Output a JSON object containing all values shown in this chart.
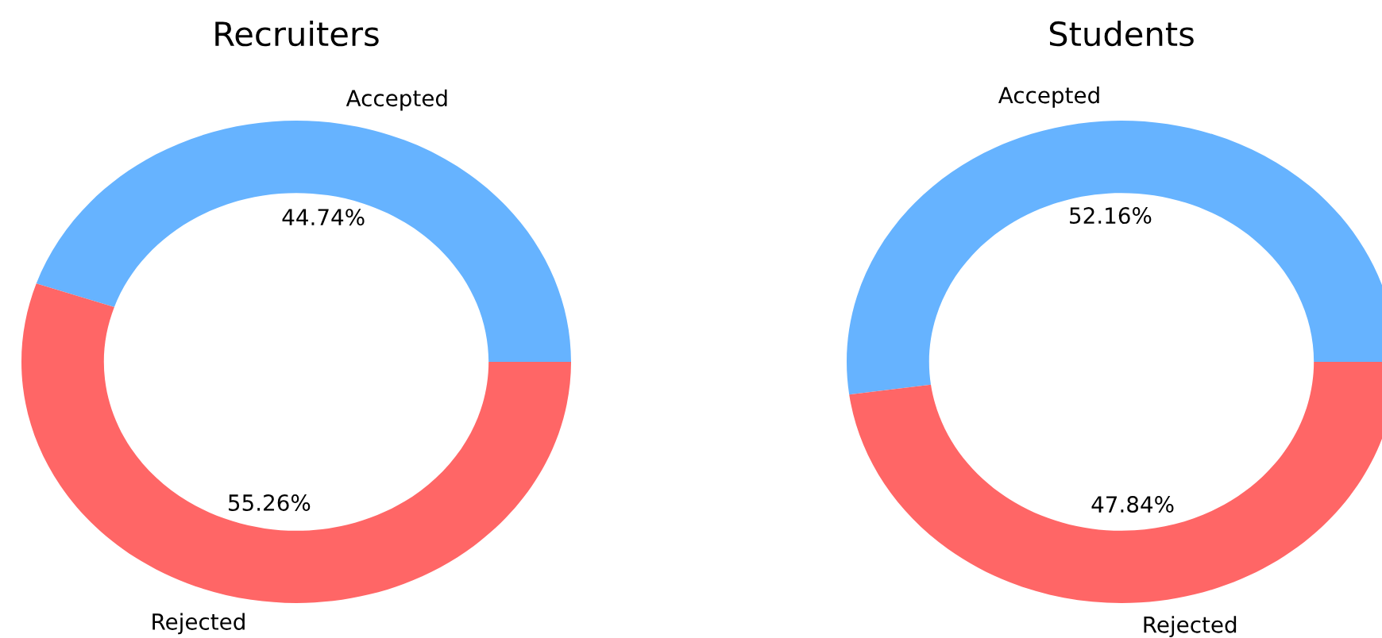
{
  "chart_data": [
    {
      "type": "donut",
      "title": "Recruiters",
      "categories": [
        "Accepted",
        "Rejected"
      ],
      "values": [
        44.74,
        55.26
      ],
      "colors": [
        "#66b3ff",
        "#ff6666"
      ],
      "value_labels": [
        "44.74%",
        "55.26%"
      ]
    },
    {
      "type": "donut",
      "title": "Students",
      "categories": [
        "Accepted",
        "Rejected"
      ],
      "values": [
        52.16,
        47.84
      ],
      "colors": [
        "#66b3ff",
        "#ff6666"
      ],
      "value_labels": [
        "52.16%",
        "47.84%"
      ]
    }
  ]
}
